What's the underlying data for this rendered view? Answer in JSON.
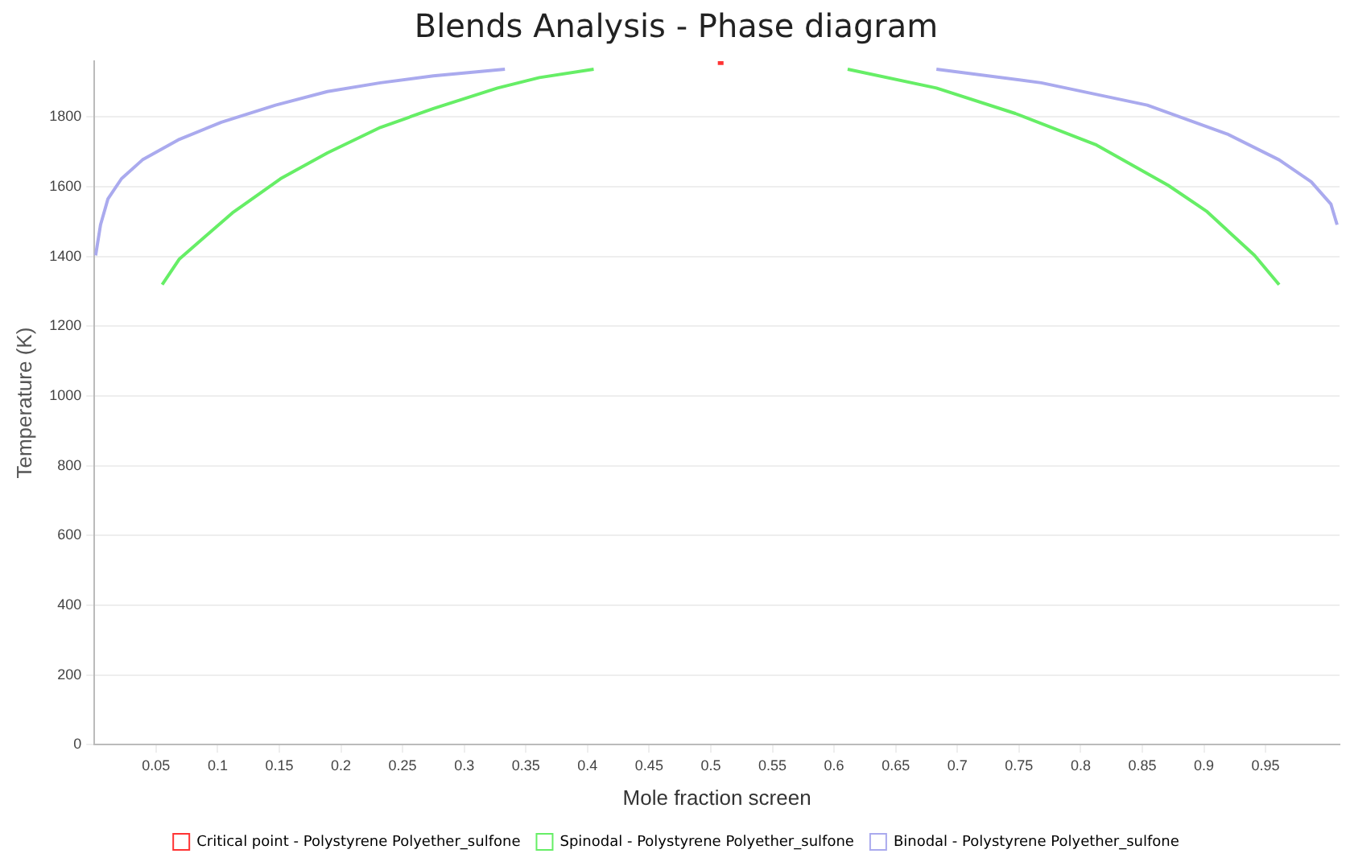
{
  "chart_data": {
    "type": "line",
    "title": "Blends Analysis - Phase diagram",
    "xlabel": "Mole fraction screen",
    "ylabel": "Temperature (K)",
    "xlim": [
      0,
      1.01
    ],
    "xticks": [
      0.05,
      0.1,
      0.15,
      0.2,
      0.25,
      0.3,
      0.35,
      0.4,
      0.45,
      0.5,
      0.55,
      0.6,
      0.65,
      0.7,
      0.75,
      0.8,
      0.85,
      0.9,
      0.95
    ],
    "ylim": [
      0,
      1960
    ],
    "yticks": [
      0,
      200,
      400,
      600,
      800,
      1000,
      1200,
      1400,
      1600,
      1800
    ],
    "grid": "y",
    "legend": "bottom",
    "series": [
      {
        "name": "Critical point - Polystyrene Polyether_sulfone",
        "type": "scatter",
        "marker": "square",
        "color": "#ff3333",
        "x": [
          0.508
        ],
        "values": [
          1957
        ]
      },
      {
        "name": "Spinodal - Polystyrene Polyether_sulfone",
        "marker": "none",
        "color": "#66ee66",
        "x": [
          0.055,
          0.069,
          0.112,
          0.151,
          0.189,
          0.232,
          0.275,
          0.327,
          0.361,
          0.405,
          null,
          0.611,
          0.683,
          0.747,
          0.812,
          0.871,
          0.902,
          0.941,
          0.961
        ],
        "values": [
          1319,
          1393,
          1525,
          1623,
          1697,
          1770,
          1824,
          1883,
          1913,
          1937,
          null,
          1937,
          1883,
          1810,
          1721,
          1604,
          1530,
          1403,
          1319
        ]
      },
      {
        "name": "Binodal - Polystyrene Polyether_sulfone",
        "marker": "none",
        "color": "#aaaaee",
        "x": [
          0.001,
          0.005,
          0.011,
          0.022,
          0.039,
          0.069,
          0.103,
          0.147,
          0.189,
          0.232,
          0.275,
          0.333,
          null,
          0.683,
          0.768,
          0.854,
          0.919,
          0.961,
          0.987,
          1.003,
          1.008
        ],
        "values": [
          1403,
          1491,
          1565,
          1623,
          1677,
          1736,
          1785,
          1834,
          1873,
          1898,
          1918,
          1937,
          null,
          1937,
          1898,
          1834,
          1751,
          1677,
          1614,
          1550,
          1491
        ]
      }
    ]
  }
}
